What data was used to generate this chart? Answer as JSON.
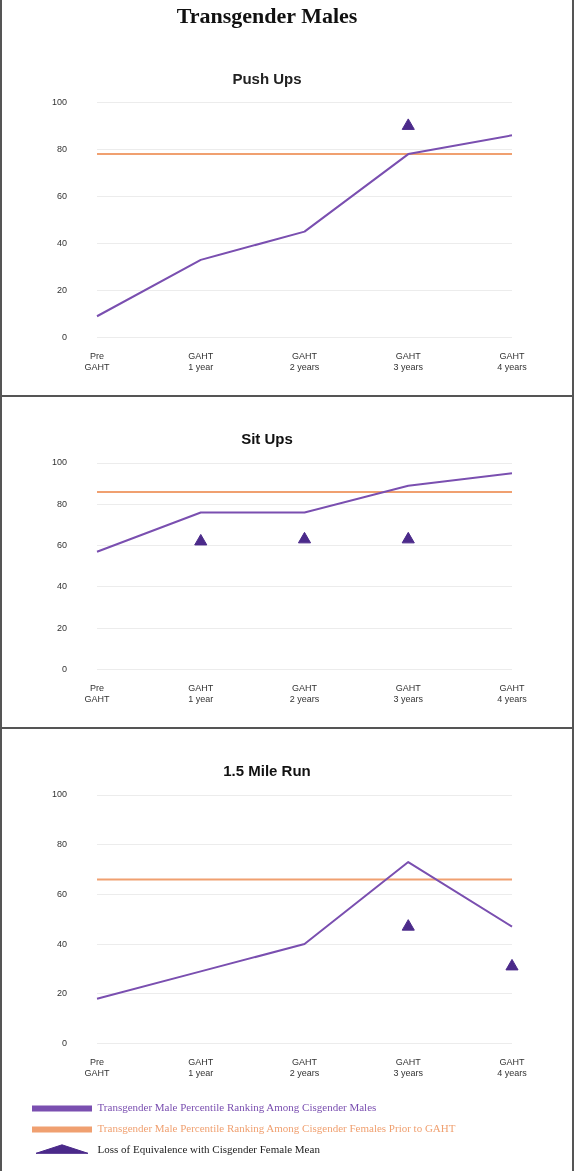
{
  "chart_data": [
    {
      "type": "line",
      "title": "Transgender Males",
      "subtitle": "Push Ups",
      "categories": [
        "Pre GAHT",
        "GAHT 1 year",
        "GAHT 2 years",
        "GAHT 3 years",
        "GAHT 4 years"
      ],
      "series": [
        {
          "type": "line",
          "color": "#7a4fb0",
          "marker": "none",
          "values": [
            9,
            33,
            45,
            78,
            86
          ]
        },
        {
          "type": "line",
          "color": "#f0a070",
          "marker": "none",
          "values": [
            78,
            78,
            78,
            78,
            78
          ]
        },
        {
          "type": "scatter",
          "color": "#4b2a8a",
          "marker": "triangle",
          "values": [
            null,
            null,
            null,
            90,
            null
          ]
        }
      ],
      "ylim": [
        0,
        100
      ],
      "yticks": [
        0,
        20,
        40,
        60,
        80,
        100
      ],
      "grid": "y",
      "legend": false
    },
    {
      "type": "line",
      "title": "Sit Ups",
      "categories": [
        "Pre GAHT",
        "GAHT 1 year",
        "GAHT 2 years",
        "GAHT 3 years",
        "GAHT 4 years"
      ],
      "series": [
        {
          "type": "line",
          "color": "#7a4fb0",
          "marker": "none",
          "values": [
            57,
            76,
            76,
            89,
            95
          ]
        },
        {
          "type": "line",
          "color": "#f0a070",
          "marker": "none",
          "values": [
            86,
            86,
            86,
            86,
            86
          ]
        },
        {
          "type": "scatter",
          "color": "#4b2a8a",
          "marker": "triangle",
          "values": [
            null,
            62,
            63,
            63,
            null
          ]
        }
      ],
      "ylim": [
        0,
        100
      ],
      "yticks": [
        0,
        20,
        40,
        60,
        80,
        100
      ],
      "grid": "y",
      "legend": false
    },
    {
      "type": "line",
      "title": "1.5 Mile Run",
      "categories": [
        "Pre GAHT",
        "GAHT 1 year",
        "GAHT 2 years",
        "GAHT 3 years",
        "GAHT 4 years"
      ],
      "series": [
        {
          "type": "line",
          "name": "Transgender Male Percentile Ranking Among Cisgender Males",
          "color": "#7a4fb0",
          "marker": "none",
          "values": [
            18,
            29,
            40,
            73,
            47
          ]
        },
        {
          "type": "line",
          "name": "Transgender Male Percentile Ranking Among Cisgender Females Prior to GAHT",
          "color": "#f0a070",
          "marker": "none",
          "values": [
            66,
            66,
            66,
            66,
            66
          ]
        },
        {
          "type": "scatter",
          "name": "Loss of Equivalence with Cisgender Female Mean",
          "color": "#4b2a8a",
          "marker": "triangle",
          "values": [
            null,
            null,
            null,
            47,
            31
          ]
        }
      ],
      "ylim": [
        0,
        100
      ],
      "yticks": [
        0,
        20,
        40,
        60,
        80,
        100
      ],
      "grid": "y",
      "legend": "bottom"
    }
  ]
}
